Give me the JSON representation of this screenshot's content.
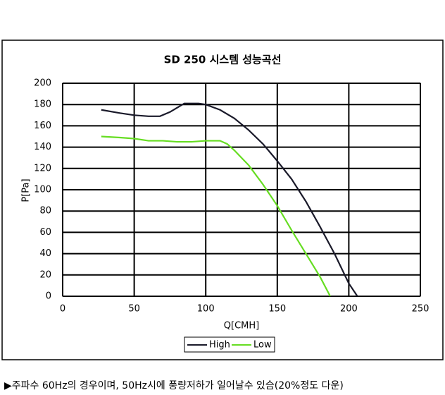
{
  "chart_data": {
    "type": "line",
    "title": "SD 250 시스템 성능곡선",
    "x_label": "Q[CMH]",
    "y_label": "P[Pa]",
    "xlim": [
      0,
      250
    ],
    "xticks": [
      0,
      50,
      100,
      150,
      200,
      250
    ],
    "ylim": [
      0,
      200
    ],
    "yticks": [
      0,
      20,
      40,
      60,
      80,
      100,
      120,
      140,
      160,
      180,
      200
    ],
    "grid": true,
    "legend": "bottom",
    "series": [
      {
        "name": "High",
        "color": "#1a1a2a",
        "x": [
          27,
          40,
          50,
          60,
          68,
          75,
          85,
          95,
          100,
          110,
          120,
          130,
          140,
          150,
          160,
          170,
          180,
          190,
          200,
          206
        ],
        "values": [
          175,
          172,
          170,
          169,
          169,
          173,
          181,
          181,
          180,
          175,
          167,
          156,
          143,
          127,
          110,
          89,
          65,
          40,
          12,
          0
        ]
      },
      {
        "name": "Low",
        "color": "#66dd22",
        "x": [
          27,
          40,
          50,
          60,
          70,
          80,
          90,
          100,
          110,
          115,
          120,
          130,
          140,
          150,
          160,
          170,
          180,
          187
        ],
        "values": [
          150,
          149,
          148,
          146,
          146,
          145,
          145,
          146,
          146,
          143,
          137,
          123,
          105,
          85,
          62,
          40,
          18,
          0
        ]
      }
    ]
  },
  "note": "▶주파수 60Hz의 경우이며, 50Hz시에 풍량저하가 일어날수 있슴(20%정도 다운)"
}
